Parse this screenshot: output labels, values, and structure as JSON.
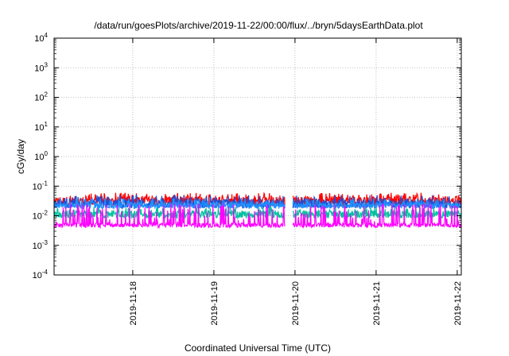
{
  "chart_data": {
    "type": "line",
    "title": "/data/run/goesPlots/archive/2019-11-22/00:00/flux/../bryn/5daysEarthData.plot",
    "xlabel": "Coordinated Universal Time (UTC)",
    "ylabel": "cGy/day",
    "yscale": "log",
    "ylim": [
      0.0001,
      10000
    ],
    "y_ticks": [
      {
        "value": 0.0001,
        "base": "10",
        "exp": "-4"
      },
      {
        "value": 0.001,
        "base": "10",
        "exp": "-3"
      },
      {
        "value": 0.01,
        "base": "10",
        "exp": "-2"
      },
      {
        "value": 0.1,
        "base": "10",
        "exp": "-1"
      },
      {
        "value": 1,
        "base": "10",
        "exp": "0"
      },
      {
        "value": 10,
        "base": "10",
        "exp": "1"
      },
      {
        "value": 100,
        "base": "10",
        "exp": "2"
      },
      {
        "value": 1000,
        "base": "10",
        "exp": "3"
      },
      {
        "value": 10000,
        "base": "10",
        "exp": "4"
      }
    ],
    "xlim": [
      "2019-11-17 00:00",
      "2019-11-22 00:00"
    ],
    "x_ticks": [
      {
        "value": 0.95,
        "label": "2019-11-18"
      },
      {
        "value": 1.95,
        "label": "2019-11-19"
      },
      {
        "value": 2.95,
        "label": "2019-11-20"
      },
      {
        "value": 3.95,
        "label": "2019-11-21"
      },
      {
        "value": 4.95,
        "label": "2019-11-22"
      }
    ],
    "x_domain_days": [
      -0.02,
      5.0
    ],
    "data_gap": {
      "start_day": 2.83,
      "end_day": 2.92
    },
    "grid": true,
    "series": [
      {
        "color": "#ff0000",
        "base": 0.03,
        "spread": 0.35,
        "spike": 0.06
      },
      {
        "color": "#1f4fd6",
        "base": 0.025,
        "spread": 0.3,
        "spike": 0.05
      },
      {
        "color": "#00c0a0",
        "base": 0.011,
        "spread": 0.25,
        "spike": 0.02
      },
      {
        "color": "#1e90ff",
        "base": 0.022,
        "spread": 0.2,
        "spike": 0.04
      },
      {
        "color": "#ff00ff",
        "base": 0.0048,
        "spread": 0.15,
        "spike": 0.026
      }
    ]
  }
}
